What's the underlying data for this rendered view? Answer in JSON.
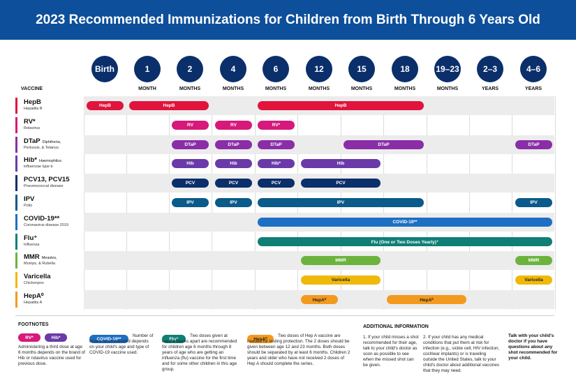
{
  "title": "2023 Recommended Immunizations for Children from Birth Through 6 Years Old",
  "vaccine_header": "VACCINE",
  "ages": [
    {
      "label": "Birth",
      "unit": ""
    },
    {
      "label": "1",
      "unit": "MONTH"
    },
    {
      "label": "2",
      "unit": "MONTHS"
    },
    {
      "label": "4",
      "unit": "MONTHS"
    },
    {
      "label": "6",
      "unit": "MONTHS"
    },
    {
      "label": "12",
      "unit": "MONTHS"
    },
    {
      "label": "15",
      "unit": "MONTHS"
    },
    {
      "label": "18",
      "unit": "MONTHS"
    },
    {
      "label": "19–23",
      "unit": "MONTHS"
    },
    {
      "label": "2–3",
      "unit": "YEARS"
    },
    {
      "label": "4–6",
      "unit": "YEARS"
    }
  ],
  "vaccines": [
    {
      "name": "HepB",
      "note": "",
      "sub": "Hepatitis B",
      "color": "#e0143c",
      "bars": [
        {
          "label": "HepB",
          "from": 0,
          "to": 0
        },
        {
          "label": "HepB",
          "from": 1,
          "to": 2
        },
        {
          "label": "HepB",
          "from": 4,
          "to": 7
        }
      ]
    },
    {
      "name": "RV*",
      "note": "",
      "sub": "Rotavirus",
      "color": "#d6197a",
      "bars": [
        {
          "label": "RV",
          "from": 2,
          "to": 2
        },
        {
          "label": "RV",
          "from": 3,
          "to": 3
        },
        {
          "label": "RV*",
          "from": 4,
          "to": 4
        }
      ]
    },
    {
      "name": "DTaP",
      "note": "Diphtheria,",
      "sub": "Pertussis, & Tetanus",
      "color": "#8a2ea8",
      "bars": [
        {
          "label": "DTaP",
          "from": 2,
          "to": 2
        },
        {
          "label": "DTaP",
          "from": 3,
          "to": 3
        },
        {
          "label": "DTaP",
          "from": 4,
          "to": 4
        },
        {
          "label": "DTaP",
          "from": 6,
          "to": 7
        },
        {
          "label": "DTaP",
          "from": 10,
          "to": 10
        }
      ]
    },
    {
      "name": "Hib*",
      "note": "Haemophilus",
      "sub": "influenzae type b",
      "color": "#6a3aa8",
      "bars": [
        {
          "label": "Hib",
          "from": 2,
          "to": 2
        },
        {
          "label": "Hib",
          "from": 3,
          "to": 3
        },
        {
          "label": "Hib*",
          "from": 4,
          "to": 4
        },
        {
          "label": "Hib",
          "from": 5,
          "to": 6
        }
      ]
    },
    {
      "name": "PCV13, PCV15",
      "note": "",
      "sub": "Pneumococcal disease",
      "color": "#0b2f6b",
      "bars": [
        {
          "label": "PCV",
          "from": 2,
          "to": 2
        },
        {
          "label": "PCV",
          "from": 3,
          "to": 3
        },
        {
          "label": "PCV",
          "from": 4,
          "to": 4
        },
        {
          "label": "PCV",
          "from": 5,
          "to": 6
        }
      ]
    },
    {
      "name": "IPV",
      "note": "",
      "sub": "Polio",
      "color": "#0a5a8a",
      "bars": [
        {
          "label": "IPV",
          "from": 2,
          "to": 2
        },
        {
          "label": "IPV",
          "from": 3,
          "to": 3
        },
        {
          "label": "IPV",
          "from": 4,
          "to": 7
        },
        {
          "label": "IPV",
          "from": 10,
          "to": 10
        }
      ]
    },
    {
      "name": "COVID-19**",
      "note": "",
      "sub": "Coronavirus disease 2019",
      "color": "#1d6fc4",
      "bars": [
        {
          "label": "COVID-19**",
          "from": 4,
          "to": 10
        }
      ]
    },
    {
      "name": "Flu⁺",
      "note": "",
      "sub": "Influenza",
      "color": "#0f7f76",
      "bars": [
        {
          "label": "Flu (One or Two Doses Yearly)⁺",
          "from": 4,
          "to": 10
        }
      ]
    },
    {
      "name": "MMR",
      "note": "Measles,",
      "sub": "Mumps, & Rubella",
      "color": "#6cb33e",
      "bars": [
        {
          "label": "MMR",
          "from": 5,
          "to": 6
        },
        {
          "label": "MMR",
          "from": 10,
          "to": 10
        }
      ]
    },
    {
      "name": "Varicella",
      "note": "",
      "sub": "Chickenpox",
      "color": "#f0b90a",
      "bars": [
        {
          "label": "Varicella",
          "from": 5,
          "to": 6
        },
        {
          "label": "Varicella",
          "from": 10,
          "to": 10
        }
      ]
    },
    {
      "name": "HepA⁰",
      "note": "",
      "sub": "Hepatitis A",
      "color": "#f39a1e",
      "bars": [
        {
          "label": "HepA⁰",
          "from": 5,
          "to": 5
        },
        {
          "label": "HepA⁰",
          "from": 7,
          "to": 8
        }
      ]
    }
  ],
  "footnotes": {
    "title": "FOOTNOTES",
    "rv_pill": "RV*",
    "hib_pill": "Hib*",
    "rv_hib_text": "Administering a third dose at age 6 months depends on the brand of Hib or rotavirus vaccine used for previous dose.",
    "covid_pill": "COVID-19**",
    "covid_text": "Number of doses recommended depends on your child's age and type of COVID-19 vaccine used.",
    "flu_pill": "Flu⁺",
    "flu_text": "Two doses given at least 4 weeks apart are recommended for children age 6 months through 8 years of age who are getting an influenza (flu) vaccine for the first time and for some other children in this age group.",
    "hepa_pill": "HepA⁰",
    "hepa_text": "Two doses of Hep A vaccine are needed for lasting protection. The 2 doses should be given between age 12 and 23 months. Both doses should be separated by at least 6 months. Children 2 years and older who have not received 2 doses of Hep A should complete the series."
  },
  "additional": {
    "title": "ADDITIONAL INFORMATION",
    "col1": "1. If your child misses a shot recommended for their age, talk to your child's doctor as soon as possible to see when the missed shot can be given.",
    "col2": "2. If your child has any medical conditions that put them at risk for infection (e.g., sickle cell, HIV infection, cochlear implants) or is traveling outside the United States, talk to your child's doctor about additional vaccines that they may need.",
    "col3": "Talk with your child's doctor if you have questions about any shot recommended for your child."
  },
  "colors": {
    "header": "#0d4f9a",
    "circle": "#0b2f6b"
  }
}
